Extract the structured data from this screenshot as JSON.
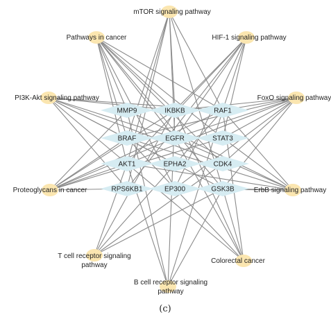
{
  "colors": {
    "edge": "#8a8a8a",
    "pathway_node": "#fbe6b0",
    "gene_node": "#d6ecf2",
    "text": "#222222"
  },
  "caption": "(c)",
  "pathways": [
    {
      "id": "mtor",
      "label": "mTOR signaling pathway"
    },
    {
      "id": "cancer",
      "label": "Pathways in cancer"
    },
    {
      "id": "hif1",
      "label": "HIF-1 signaling pathway"
    },
    {
      "id": "pi3k",
      "label": "PI3K-Akt signaling pathway"
    },
    {
      "id": "foxo",
      "label": "FoxO signaling pathway"
    },
    {
      "id": "proteo",
      "label": "Proteoglycans in cancer"
    },
    {
      "id": "erbb",
      "label": "ErbB signaling pathway"
    },
    {
      "id": "tcell",
      "label": [
        "T cell receptor signaling",
        "pathway"
      ]
    },
    {
      "id": "colo",
      "label": "Colorectal cancer"
    },
    {
      "id": "bcell",
      "label": [
        "B cell receptor signaling",
        "pathway"
      ]
    }
  ],
  "genes": [
    {
      "id": "MMP9",
      "label": "MMP9"
    },
    {
      "id": "IKBKB",
      "label": "IKBKB"
    },
    {
      "id": "RAF1",
      "label": "RAF1"
    },
    {
      "id": "BRAF",
      "label": "BRAF"
    },
    {
      "id": "EGFR",
      "label": "EGFR"
    },
    {
      "id": "STAT3",
      "label": "STAT3"
    },
    {
      "id": "AKT1",
      "label": "AKT1"
    },
    {
      "id": "EPHA2",
      "label": "EPHA2"
    },
    {
      "id": "CDK4",
      "label": "CDK4"
    },
    {
      "id": "RPS6KB1",
      "label": "RPS6KB1"
    },
    {
      "id": "EP300",
      "label": "EP300"
    },
    {
      "id": "GSK3B",
      "label": "GSK3B"
    }
  ],
  "edges": [
    [
      "mtor",
      "IKBKB"
    ],
    [
      "mtor",
      "AKT1"
    ],
    [
      "mtor",
      "RPS6KB1"
    ],
    [
      "mtor",
      "BRAF"
    ],
    [
      "mtor",
      "RAF1"
    ],
    [
      "mtor",
      "EGFR"
    ],
    [
      "mtor",
      "GSK3B"
    ],
    [
      "cancer",
      "MMP9"
    ],
    [
      "cancer",
      "IKBKB"
    ],
    [
      "cancer",
      "RAF1"
    ],
    [
      "cancer",
      "BRAF"
    ],
    [
      "cancer",
      "EGFR"
    ],
    [
      "cancer",
      "STAT3"
    ],
    [
      "cancer",
      "AKT1"
    ],
    [
      "cancer",
      "CDK4"
    ],
    [
      "cancer",
      "EP300"
    ],
    [
      "cancer",
      "GSK3B"
    ],
    [
      "hif1",
      "RAF1"
    ],
    [
      "hif1",
      "EGFR"
    ],
    [
      "hif1",
      "STAT3"
    ],
    [
      "hif1",
      "AKT1"
    ],
    [
      "hif1",
      "RPS6KB1"
    ],
    [
      "hif1",
      "EP300"
    ],
    [
      "hif1",
      "IKBKB"
    ],
    [
      "pi3k",
      "RAF1"
    ],
    [
      "pi3k",
      "EGFR"
    ],
    [
      "pi3k",
      "AKT1"
    ],
    [
      "pi3k",
      "CDK4"
    ],
    [
      "pi3k",
      "RPS6KB1"
    ],
    [
      "pi3k",
      "GSK3B"
    ],
    [
      "pi3k",
      "EPHA2"
    ],
    [
      "pi3k",
      "IKBKB"
    ],
    [
      "foxo",
      "IKBKB"
    ],
    [
      "foxo",
      "BRAF"
    ],
    [
      "foxo",
      "RAF1"
    ],
    [
      "foxo",
      "EGFR"
    ],
    [
      "foxo",
      "STAT3"
    ],
    [
      "foxo",
      "AKT1"
    ],
    [
      "foxo",
      "CDK4"
    ],
    [
      "foxo",
      "EP300"
    ],
    [
      "foxo",
      "GSK3B"
    ],
    [
      "proteo",
      "MMP9"
    ],
    [
      "proteo",
      "RAF1"
    ],
    [
      "proteo",
      "BRAF"
    ],
    [
      "proteo",
      "EGFR"
    ],
    [
      "proteo",
      "STAT3"
    ],
    [
      "proteo",
      "AKT1"
    ],
    [
      "proteo",
      "RPS6KB1"
    ],
    [
      "proteo",
      "IKBKB"
    ],
    [
      "erbb",
      "BRAF"
    ],
    [
      "erbb",
      "RAF1"
    ],
    [
      "erbb",
      "EGFR"
    ],
    [
      "erbb",
      "STAT3"
    ],
    [
      "erbb",
      "AKT1"
    ],
    [
      "erbb",
      "GSK3B"
    ],
    [
      "erbb",
      "RPS6KB1"
    ],
    [
      "erbb",
      "MMP9"
    ],
    [
      "tcell",
      "IKBKB"
    ],
    [
      "tcell",
      "RAF1"
    ],
    [
      "tcell",
      "AKT1"
    ],
    [
      "tcell",
      "GSK3B"
    ],
    [
      "tcell",
      "CDK4"
    ],
    [
      "colo",
      "BRAF"
    ],
    [
      "colo",
      "RAF1"
    ],
    [
      "colo",
      "AKT1"
    ],
    [
      "colo",
      "GSK3B"
    ],
    [
      "colo",
      "EGFR"
    ],
    [
      "colo",
      "IKBKB"
    ],
    [
      "bcell",
      "IKBKB"
    ],
    [
      "bcell",
      "RAF1"
    ],
    [
      "bcell",
      "AKT1"
    ],
    [
      "bcell",
      "GSK3B"
    ],
    [
      "bcell",
      "MMP9"
    ]
  ]
}
